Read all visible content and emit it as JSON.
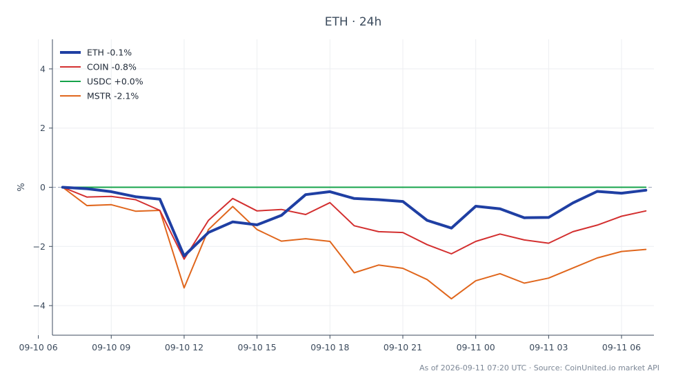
{
  "chart_data": {
    "type": "line",
    "title": "ETH · 24h",
    "xlabel": "",
    "ylabel": "%",
    "ylim": [
      -5,
      5
    ],
    "xlim": [
      "2026-09-10 06:45",
      "2026-09-11 07:20"
    ],
    "grid": true,
    "legend_position": "top-left",
    "x_ticks": [
      "09-10 06",
      "09-10 09",
      "09-10 12",
      "09-10 15",
      "09-10 18",
      "09-10 21",
      "09-11 00",
      "09-11 03",
      "09-11 06"
    ],
    "x_tick_values": [
      "2026-09-10 06:00",
      "2026-09-10 09:00",
      "2026-09-10 12:00",
      "2026-09-10 15:00",
      "2026-09-10 18:00",
      "2026-09-10 21:00",
      "2026-09-11 00:00",
      "2026-09-11 03:00",
      "2026-09-11 06:00"
    ],
    "y_ticks": [
      {
        "value": 4,
        "label": "4"
      },
      {
        "value": 2,
        "label": "2"
      },
      {
        "value": 0,
        "label": "0"
      },
      {
        "value": -2,
        "label": "−2"
      },
      {
        "value": -4,
        "label": "−4"
      }
    ],
    "x": [
      "2026-09-10 07:00",
      "2026-09-10 08:00",
      "2026-09-10 09:00",
      "2026-09-10 10:00",
      "2026-09-10 11:00",
      "2026-09-10 12:00",
      "2026-09-10 13:00",
      "2026-09-10 14:00",
      "2026-09-10 15:00",
      "2026-09-10 16:00",
      "2026-09-10 17:00",
      "2026-09-10 18:00",
      "2026-09-10 19:00",
      "2026-09-10 20:00",
      "2026-09-10 21:00",
      "2026-09-10 22:00",
      "2026-09-10 23:00",
      "2026-09-11 00:00",
      "2026-09-11 01:00",
      "2026-09-11 02:00",
      "2026-09-11 03:00",
      "2026-09-11 04:00",
      "2026-09-11 05:00",
      "2026-09-11 06:00",
      "2026-09-11 07:00"
    ],
    "series": [
      {
        "name": "ETH -0.1%",
        "color": "#1f3fa3",
        "width": 4,
        "values": [
          0.0,
          -0.05,
          -0.15,
          -0.32,
          -0.4,
          -2.32,
          -1.53,
          -1.17,
          -1.27,
          -0.95,
          -0.25,
          -0.15,
          -0.38,
          -0.42,
          -0.48,
          -1.12,
          -1.38,
          -0.64,
          -0.73,
          -1.03,
          -1.02,
          -0.53,
          -0.14,
          -0.2,
          -0.1
        ]
      },
      {
        "name": "COIN -0.8%",
        "color": "#d32f2f",
        "width": 2,
        "values": [
          0.0,
          -0.33,
          -0.31,
          -0.42,
          -0.78,
          -2.43,
          -1.12,
          -0.38,
          -0.8,
          -0.75,
          -0.92,
          -0.52,
          -1.3,
          -1.5,
          -1.53,
          -1.94,
          -2.25,
          -1.83,
          -1.58,
          -1.78,
          -1.89,
          -1.5,
          -1.28,
          -0.98,
          -0.8
        ]
      },
      {
        "name": "USDC +0.0%",
        "color": "#16a34a",
        "width": 2,
        "values": [
          0.0,
          0.0,
          0.0,
          0.0,
          0.0,
          0.0,
          0.0,
          0.0,
          0.0,
          0.0,
          0.0,
          0.0,
          0.0,
          0.0,
          0.0,
          0.0,
          0.0,
          0.0,
          0.0,
          0.0,
          0.0,
          0.0,
          0.0,
          0.0,
          0.0
        ]
      },
      {
        "name": "MSTR -2.1%",
        "color": "#e0661c",
        "width": 2,
        "values": [
          0.0,
          -0.62,
          -0.59,
          -0.81,
          -0.78,
          -3.4,
          -1.43,
          -0.65,
          -1.43,
          -1.82,
          -1.74,
          -1.83,
          -2.89,
          -2.63,
          -2.74,
          -3.12,
          -3.77,
          -3.16,
          -2.92,
          -3.24,
          -3.07,
          -2.73,
          -2.39,
          -2.17,
          -2.1
        ]
      }
    ]
  },
  "footer": {
    "source_text": "As of 2026-09-11 07:20 UTC · Source: CoinUnited.io market API"
  }
}
